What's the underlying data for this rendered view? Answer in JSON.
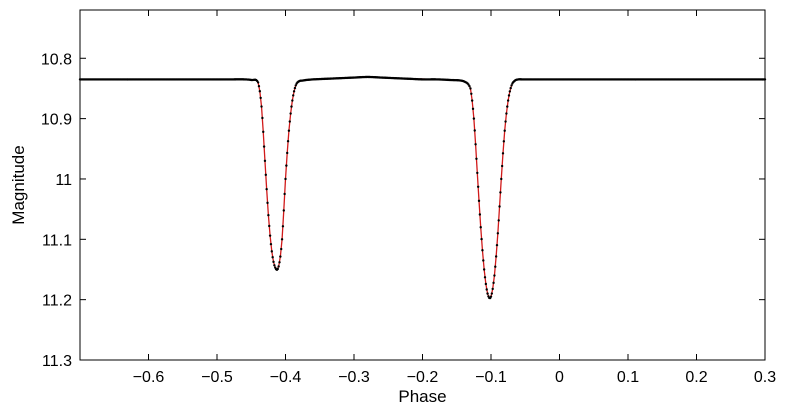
{
  "chart_data": {
    "type": "scatter",
    "xlabel": "Phase",
    "ylabel": "Magnitude",
    "xlim": [
      -0.7,
      0.3
    ],
    "ylim": [
      10.72,
      11.3
    ],
    "y_inverted": true,
    "grid": false,
    "xticks": [
      -0.6,
      -0.5,
      -0.4,
      -0.3,
      -0.2,
      -0.1,
      0,
      0.1,
      0.2,
      0.3
    ],
    "xtick_labels": [
      "−0.6",
      "−0.5",
      "−0.4",
      "−0.3",
      "−0.2",
      "−0.1",
      "0",
      "0.1",
      "0.2",
      "0.3"
    ],
    "yticks": [
      10.8,
      10.9,
      11,
      11.1,
      11.2,
      11.3
    ],
    "ytick_labels": [
      "10.8",
      "10.9",
      "11",
      "11.1",
      "11.2",
      "11.3"
    ],
    "series": [
      {
        "kind": "observed_points",
        "color": "#000000",
        "x": [
          -0.7,
          -0.68,
          -0.66,
          -0.64,
          -0.62,
          -0.6,
          -0.58,
          -0.56,
          -0.54,
          -0.52,
          -0.5,
          -0.48,
          -0.46,
          -0.45,
          -0.44,
          -0.435,
          -0.43,
          -0.425,
          -0.42,
          -0.415,
          -0.41,
          -0.405,
          -0.4,
          -0.395,
          -0.39,
          -0.385,
          -0.38,
          -0.375,
          -0.37,
          -0.36,
          -0.34,
          -0.32,
          -0.3,
          -0.28,
          -0.26,
          -0.24,
          -0.22,
          -0.2,
          -0.18,
          -0.16,
          -0.14,
          -0.13,
          -0.125,
          -0.12,
          -0.115,
          -0.11,
          -0.105,
          -0.1,
          -0.095,
          -0.09,
          -0.085,
          -0.08,
          -0.075,
          -0.07,
          -0.065,
          -0.06,
          -0.055,
          -0.04,
          -0.02,
          0,
          0.02,
          0.04,
          0.06,
          0.08,
          0.1,
          0.12,
          0.14,
          0.16,
          0.18,
          0.2,
          0.22,
          0.24,
          0.26,
          0.28,
          0.3
        ],
        "y": [
          10.835,
          10.835,
          10.835,
          10.835,
          10.835,
          10.835,
          10.835,
          10.835,
          10.835,
          10.835,
          10.835,
          10.835,
          10.835,
          10.836,
          10.84,
          10.88,
          10.97,
          11.06,
          11.12,
          11.147,
          11.145,
          11.1,
          11.0,
          10.92,
          10.87,
          10.845,
          10.838,
          10.837,
          10.836,
          10.835,
          10.834,
          10.833,
          10.832,
          10.831,
          10.832,
          10.833,
          10.834,
          10.835,
          10.835,
          10.836,
          10.838,
          10.85,
          10.9,
          10.99,
          11.08,
          11.15,
          11.19,
          11.195,
          11.16,
          11.09,
          11.0,
          10.92,
          10.87,
          10.845,
          10.837,
          10.835,
          10.835,
          10.835,
          10.835,
          10.835,
          10.835,
          10.835,
          10.835,
          10.835,
          10.835,
          10.835,
          10.835,
          10.835,
          10.835,
          10.835,
          10.835,
          10.835,
          10.835,
          10.835,
          10.835
        ]
      },
      {
        "kind": "model_curve",
        "color": "#d11a1a",
        "x": [
          -0.7,
          -0.6,
          -0.5,
          -0.46,
          -0.45,
          -0.44,
          -0.435,
          -0.43,
          -0.425,
          -0.42,
          -0.415,
          -0.41,
          -0.405,
          -0.4,
          -0.395,
          -0.39,
          -0.385,
          -0.38,
          -0.37,
          -0.34,
          -0.3,
          -0.28,
          -0.26,
          -0.22,
          -0.18,
          -0.14,
          -0.13,
          -0.125,
          -0.12,
          -0.115,
          -0.11,
          -0.105,
          -0.1,
          -0.095,
          -0.09,
          -0.085,
          -0.08,
          -0.075,
          -0.07,
          -0.065,
          -0.06,
          -0.04,
          0,
          0.1,
          0.2,
          0.3
        ],
        "y": [
          10.835,
          10.835,
          10.835,
          10.835,
          10.836,
          10.84,
          10.88,
          10.97,
          11.06,
          11.12,
          11.147,
          11.145,
          11.1,
          11.0,
          10.92,
          10.87,
          10.845,
          10.838,
          10.836,
          10.834,
          10.832,
          10.831,
          10.832,
          10.834,
          10.835,
          10.838,
          10.85,
          10.9,
          10.99,
          11.08,
          11.15,
          11.19,
          11.195,
          11.16,
          11.09,
          11.0,
          10.92,
          10.87,
          10.845,
          10.837,
          10.835,
          10.835,
          10.835,
          10.835,
          10.835,
          10.835
        ]
      }
    ]
  }
}
